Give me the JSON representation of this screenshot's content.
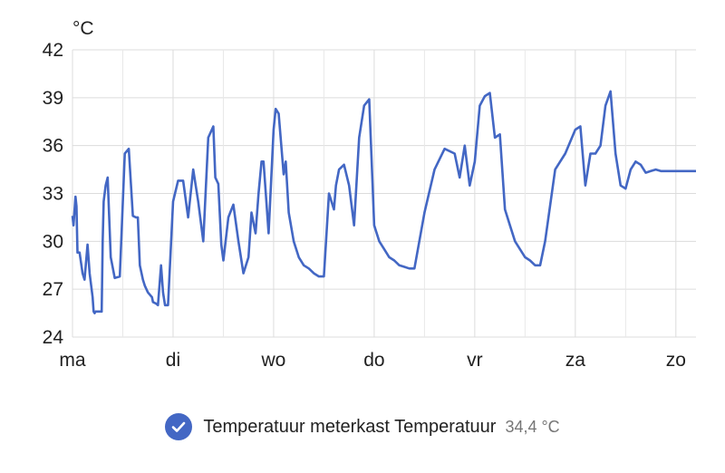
{
  "chart_data": {
    "type": "line",
    "unit": "°C",
    "y_ticks": [
      "24",
      "27",
      "30",
      "33",
      "36",
      "39",
      "42"
    ],
    "ylim": [
      24,
      42
    ],
    "x_ticks": [
      "ma",
      "di",
      "wo",
      "do",
      "vr",
      "za",
      "zo"
    ],
    "xlim": [
      0,
      6.2
    ],
    "grid": true,
    "series": [
      {
        "name": "Temperatuur meterkast Temperatuur",
        "color": "#4367c4",
        "current_value": "34,4 °C",
        "x": [
          0.0,
          0.01,
          0.03,
          0.04,
          0.05,
          0.07,
          0.1,
          0.12,
          0.15,
          0.17,
          0.2,
          0.21,
          0.22,
          0.23,
          0.25,
          0.27,
          0.29,
          0.3,
          0.31,
          0.33,
          0.35,
          0.38,
          0.42,
          0.47,
          0.52,
          0.56,
          0.6,
          0.63,
          0.65,
          0.67,
          0.7,
          0.72,
          0.75,
          0.79,
          0.8,
          0.83,
          0.85,
          0.88,
          0.9,
          0.92,
          0.95,
          1.0,
          1.05,
          1.1,
          1.15,
          1.2,
          1.25,
          1.3,
          1.35,
          1.4,
          1.42,
          1.45,
          1.48,
          1.5,
          1.55,
          1.6,
          1.65,
          1.7,
          1.75,
          1.78,
          1.82,
          1.85,
          1.88,
          1.9,
          1.95,
          2.0,
          2.02,
          2.05,
          2.1,
          2.12,
          2.15,
          2.2,
          2.25,
          2.3,
          2.35,
          2.4,
          2.45,
          2.5,
          2.55,
          2.6,
          2.62,
          2.65,
          2.7,
          2.75,
          2.8,
          2.85,
          2.9,
          2.95,
          3.0,
          3.05,
          3.1,
          3.15,
          3.2,
          3.25,
          3.3,
          3.35,
          3.4,
          3.5,
          3.6,
          3.7,
          3.8,
          3.85,
          3.9,
          3.95,
          4.0,
          4.05,
          4.1,
          4.15,
          4.2,
          4.25,
          4.3,
          4.35,
          4.4,
          4.45,
          4.5,
          4.55,
          4.6,
          4.65,
          4.7,
          4.8,
          4.9,
          5.0,
          5.05,
          5.1,
          5.15,
          5.2,
          5.25,
          5.3,
          5.35,
          5.4,
          5.45,
          5.5,
          5.55,
          5.6,
          5.65,
          5.7,
          5.75,
          5.8,
          5.85,
          5.9,
          5.95,
          6.0,
          6.05,
          6.1,
          6.15,
          6.2
        ],
        "values": [
          31.6,
          31.0,
          32.8,
          32.2,
          29.3,
          29.3,
          28.0,
          27.6,
          29.8,
          28.0,
          26.5,
          25.6,
          25.5,
          25.6,
          25.6,
          25.6,
          25.6,
          30.0,
          32.5,
          33.5,
          34.0,
          29.0,
          27.7,
          27.8,
          35.5,
          35.8,
          31.6,
          31.5,
          31.5,
          28.5,
          27.6,
          27.2,
          26.8,
          26.5,
          26.2,
          26.1,
          26.0,
          28.5,
          26.8,
          26.0,
          26.0,
          32.5,
          33.8,
          33.8,
          31.5,
          34.5,
          32.5,
          30.0,
          36.5,
          37.2,
          34.0,
          33.6,
          29.8,
          28.8,
          31.5,
          32.3,
          30.0,
          28.0,
          29.0,
          31.8,
          30.5,
          33.0,
          35.0,
          35.0,
          30.5,
          37.0,
          38.3,
          38.0,
          34.2,
          35.0,
          31.8,
          30.0,
          29.0,
          28.5,
          28.3,
          28.0,
          27.8,
          27.8,
          33.0,
          32.0,
          33.5,
          34.5,
          34.8,
          33.5,
          31.0,
          36.5,
          38.5,
          38.9,
          31.0,
          30.0,
          29.5,
          29.0,
          28.8,
          28.5,
          28.4,
          28.3,
          28.3,
          31.8,
          34.5,
          35.8,
          35.5,
          34.0,
          36.0,
          33.5,
          35.0,
          38.5,
          39.1,
          39.3,
          36.5,
          36.7,
          32.0,
          31.0,
          30.0,
          29.5,
          29.0,
          28.8,
          28.5,
          28.5,
          30.0,
          34.5,
          35.5,
          37.0,
          37.2,
          33.5,
          35.5,
          35.5,
          36.0,
          38.5,
          39.4,
          35.5,
          33.5,
          33.3,
          34.5,
          35.0,
          34.8,
          34.3,
          34.4,
          34.5,
          34.4,
          34.4,
          34.4,
          34.4,
          34.4,
          34.4,
          34.4,
          34.4
        ]
      }
    ]
  },
  "legend": {
    "check_color": "#4367c4"
  }
}
